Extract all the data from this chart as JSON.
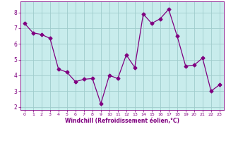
{
  "x": [
    0,
    1,
    2,
    3,
    4,
    5,
    6,
    7,
    8,
    9,
    10,
    11,
    12,
    13,
    14,
    15,
    16,
    17,
    18,
    19,
    20,
    21,
    22,
    23
  ],
  "y": [
    7.3,
    6.7,
    6.6,
    6.35,
    4.4,
    4.2,
    3.6,
    3.75,
    3.8,
    2.2,
    4.0,
    3.8,
    5.3,
    4.5,
    7.9,
    7.3,
    7.6,
    8.2,
    6.5,
    4.6,
    4.65,
    5.1,
    3.0,
    3.4
  ],
  "line_color": "#800080",
  "marker": "D",
  "marker_size": 2.5,
  "bg_color": "#c8ecec",
  "grid_color": "#a0cccc",
  "xlabel": "Windchill (Refroidissement éolien,°C)",
  "xlabel_color": "#800080",
  "tick_color": "#800080",
  "ylim": [
    1.8,
    8.7
  ],
  "xlim": [
    -0.5,
    23.5
  ],
  "yticks": [
    2,
    3,
    4,
    5,
    6,
    7,
    8
  ],
  "xticks": [
    0,
    1,
    2,
    3,
    4,
    5,
    6,
    7,
    8,
    9,
    10,
    11,
    12,
    13,
    14,
    15,
    16,
    17,
    18,
    19,
    20,
    21,
    22,
    23
  ],
  "spine_color": "#800080",
  "fig_bg": "#ffffff"
}
